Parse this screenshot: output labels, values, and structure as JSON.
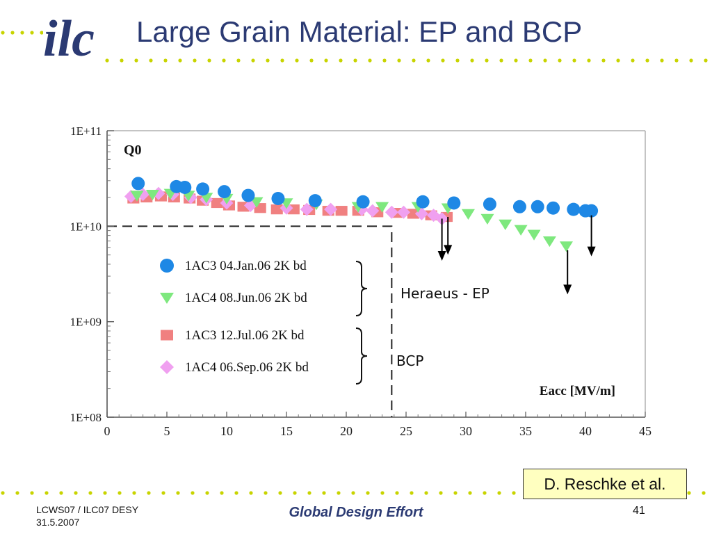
{
  "slide": {
    "title": "Large Grain Material: EP and BCP",
    "credit": "D. Reschke et al.",
    "footer_left_line1": "LCWS07 / ILC07 DESY",
    "footer_left_line2": "31.5.2007",
    "footer_center": "Global Design Effort",
    "page_number": "41",
    "logo_text": "ilc"
  },
  "colors": {
    "title": "#2b3a73",
    "dots": "#c8d400",
    "series_1AC3_EP": "#1e88e5",
    "series_1AC4_EP": "#7ee87e",
    "series_1AC3_BCP": "#f08080",
    "series_1AC4_BCP": "#f0a0f0"
  },
  "chart_data": {
    "type": "scatter",
    "y_scale": "log",
    "ylabel": "Q0",
    "xlabel": "Eacc [MV/m]",
    "xlim": [
      0,
      45
    ],
    "ylim": [
      100000000.0,
      100000000000.0
    ],
    "x_ticks": [
      "0",
      "5",
      "10",
      "15",
      "20",
      "25",
      "30",
      "35",
      "40",
      "45"
    ],
    "y_ticks": [
      "1E+08",
      "1E+09",
      "1E+10",
      "1E+11"
    ],
    "series": [
      {
        "name": "1AC3 04.Jan.06 2K bd",
        "marker": "circle",
        "x": [
          2.6,
          5.8,
          6.5,
          8,
          9.8,
          11.8,
          14.3,
          17.4,
          21.4,
          26.4,
          29,
          32,
          34.5,
          36,
          37.3,
          39,
          40,
          40.5
        ],
        "y": [
          28000000000.0,
          26000000000.0,
          25500000000.0,
          24500000000.0,
          23000000000.0,
          21000000000.0,
          19500000000.0,
          18500000000.0,
          18000000000.0,
          18000000000.0,
          17500000000.0,
          17000000000.0,
          16000000000.0,
          16000000000.0,
          15500000000.0,
          15000000000.0,
          14500000000.0,
          14500000000.0
        ]
      },
      {
        "name": "1AC4 08.Jun.06 2K bd",
        "marker": "triangle",
        "x": [
          2.5,
          3.8,
          5.3,
          6.8,
          8.3,
          10,
          12.5,
          15,
          17.5,
          21,
          23,
          26,
          28.5,
          30.2,
          31.8,
          33.3,
          34.6,
          35.7,
          37,
          38.4
        ],
        "y": [
          21000000000.0,
          21500000000.0,
          22000000000.0,
          21000000000.0,
          20000000000.0,
          19500000000.0,
          18000000000.0,
          17500000000.0,
          17000000000.0,
          16000000000.0,
          16000000000.0,
          16000000000.0,
          15500000000.0,
          13500000000.0,
          12000000000.0,
          10500000000.0,
          9200000000.0,
          8200000000.0,
          7000000000.0,
          6200000000.0
        ]
      },
      {
        "name": "1AC3 12.Jul.06 2K bd",
        "marker": "square",
        "x": [
          2.2,
          3.3,
          4.5,
          5.6,
          6.9,
          8,
          9.2,
          10.2,
          11.4,
          12.8,
          14.2,
          15.6,
          16.9,
          18.5,
          19.6,
          21,
          22.6,
          24.2,
          25.6,
          27.1,
          28.4
        ],
        "y": [
          19500000000.0,
          20000000000.0,
          20500000000.0,
          20000000000.0,
          19500000000.0,
          18500000000.0,
          17500000000.0,
          16500000000.0,
          16000000000.0,
          15500000000.0,
          15000000000.0,
          15000000000.0,
          14800000000.0,
          14500000000.0,
          14500000000.0,
          14500000000.0,
          14000000000.0,
          13800000000.0,
          13500000000.0,
          13000000000.0,
          12500000000.0
        ]
      },
      {
        "name": "1AC4 06.Sep.06 2K bd",
        "marker": "diamond",
        "x": [
          2,
          3,
          4.3,
          5.5,
          7,
          8.3,
          10,
          12,
          15,
          16.7,
          18.7,
          21.3,
          22.2,
          23.8,
          24.8,
          26.3,
          27.3,
          28
        ],
        "y": [
          20500000000.0,
          21500000000.0,
          22000000000.0,
          21500000000.0,
          20000000000.0,
          19000000000.0,
          17500000000.0,
          16500000000.0,
          15500000000.0,
          15000000000.0,
          15000000000.0,
          15000000000.0,
          14500000000.0,
          14000000000.0,
          14000000000.0,
          13500000000.0,
          13000000000.0,
          12000000000.0
        ]
      }
    ],
    "breakdown_arrows_x": [
      28,
      28.5,
      38.5,
      40.5
    ],
    "reference_line": {
      "q0": 10000000000.0,
      "eacc": 23.8
    },
    "legend_groups": [
      {
        "label": "Heraeus - EP"
      },
      {
        "label": "BCP"
      }
    ]
  }
}
